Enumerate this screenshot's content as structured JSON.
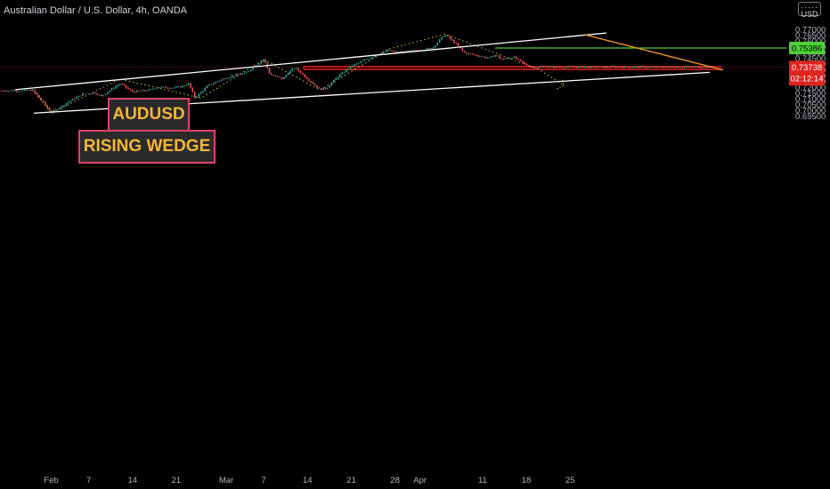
{
  "header": {
    "title": "Australian Dollar / U.S. Dollar, 4h, OANDA",
    "currency_button": "USD"
  },
  "annotations": {
    "symbol_label": "AUDUSD",
    "pattern_label": "RISING WEDGE"
  },
  "colors": {
    "background": "#000000",
    "up_candle": "#26a69a",
    "down_candle": "#ef5350",
    "wedge_lines": "#ffffff",
    "zigzag": "#d4c04a",
    "downtrend_line": "#f59a23",
    "resistance_line": "#4cd137",
    "support_zone": "#d31d1d",
    "price_label": "#e0241f"
  },
  "chart_data": {
    "type": "candlestick",
    "symbol": "AUDUSD",
    "timeframe": "4h",
    "x_tick_labels": [
      "Feb",
      "7",
      "14",
      "21",
      "Mar",
      "7",
      "14",
      "21",
      "28",
      "Apr",
      "11",
      "18",
      "25"
    ],
    "y_tick_labels": [
      "0.77000",
      "0.76500",
      "0.76000",
      "0.75500",
      "0.75000",
      "0.74500",
      "0.74000",
      "0.73500",
      "0.73000",
      "0.72500",
      "0.72000",
      "0.71500",
      "0.71000",
      "0.70500",
      "0.70000",
      "0.69500"
    ],
    "ylim": [
      0.6935,
      0.7737
    ],
    "grid": false,
    "price_path": [
      [
        "Jan 28",
        0.717
      ],
      [
        "Jan 29",
        0.7175
      ],
      [
        "Jan 31",
        0.705
      ],
      [
        "Feb 1",
        0.698
      ],
      [
        "Feb 4",
        0.708
      ],
      [
        "Feb 6",
        0.714
      ],
      [
        "Feb 8",
        0.715
      ],
      [
        "Feb 9",
        0.712
      ],
      [
        "Feb 10",
        0.716
      ],
      [
        "Feb 11",
        0.7195
      ],
      [
        "Feb 12",
        0.723
      ],
      [
        "Feb 14",
        0.716
      ],
      [
        "Feb 16",
        0.717
      ],
      [
        "Feb 17",
        0.718
      ],
      [
        "Feb 18",
        0.72
      ],
      [
        "Feb 21",
        0.7195
      ],
      [
        "Feb 22",
        0.721
      ],
      [
        "Feb 23",
        0.723
      ],
      [
        "Feb 24",
        0.7105
      ],
      [
        "Feb 26",
        0.721
      ],
      [
        "Feb 28",
        0.726
      ],
      [
        "Mar 2",
        0.73
      ],
      [
        "Mar 4",
        0.732
      ],
      [
        "Mar 6",
        0.74
      ],
      [
        "Mar 7",
        0.744
      ],
      [
        "Mar 8",
        0.731
      ],
      [
        "Mar 10",
        0.727
      ],
      [
        "Mar 11",
        0.733
      ],
      [
        "Mar 12",
        0.737
      ],
      [
        "Mar 14",
        0.727
      ],
      [
        "Mar 16",
        0.718
      ],
      [
        "Mar 17",
        0.719
      ],
      [
        "Mar 19",
        0.73
      ],
      [
        "Mar 21",
        0.738
      ],
      [
        "Mar 23",
        0.743
      ],
      [
        "Mar 25",
        0.748
      ],
      [
        "Mar 27",
        0.752
      ],
      [
        "Mar 28",
        0.75
      ],
      [
        "Mar 30",
        0.751
      ],
      [
        "Apr 1",
        0.752
      ],
      [
        "Apr 3",
        0.754
      ],
      [
        "Apr 4",
        0.76
      ],
      [
        "Apr 5",
        0.7655
      ],
      [
        "Apr 7",
        0.756
      ],
      [
        "Apr 8",
        0.75
      ],
      [
        "Apr 10",
        0.7475
      ],
      [
        "Apr 12",
        0.745
      ],
      [
        "Apr 13",
        0.748
      ],
      [
        "Apr 14",
        0.744
      ],
      [
        "Apr 16",
        0.746
      ],
      [
        "Apr 18",
        0.739
      ],
      [
        "Apr 19",
        0.737
      ],
      [
        "Apr 21",
        0.738
      ],
      [
        "Apr 22",
        0.7374
      ]
    ],
    "wedge_upper": [
      [
        "Jan 29",
        0.7178
      ],
      [
        "Apr 6",
        0.7668
      ]
    ],
    "wedge_lower": [
      [
        "Feb 1",
        0.6975
      ],
      [
        "Apr 22",
        0.7328
      ]
    ],
    "zigzag": [
      [
        "Jan 29",
        0.718
      ],
      [
        "Feb 1",
        0.6975
      ],
      [
        "Feb 12",
        0.727
      ],
      [
        "Feb 25",
        0.7105
      ],
      [
        "Mar 7",
        0.744
      ],
      [
        "Mar 16",
        0.7175
      ],
      [
        "Mar 27",
        0.753
      ],
      [
        "Apr 5",
        0.7658
      ],
      [
        "Apr 20",
        0.7355
      ],
      [
        "Apr 24",
        0.7215
      ]
    ],
    "downtrend_line": [
      [
        "Apr 5",
        0.7655
      ],
      [
        "Apr 23",
        0.7348
      ]
    ],
    "resistance_level": 0.75386,
    "support_zone": [
      0.7363,
      0.7373
    ],
    "last_price": "0.73738",
    "countdown": "02:12:14",
    "resistance_label": "0.75386",
    "partial_axis_label": "0.73630"
  }
}
